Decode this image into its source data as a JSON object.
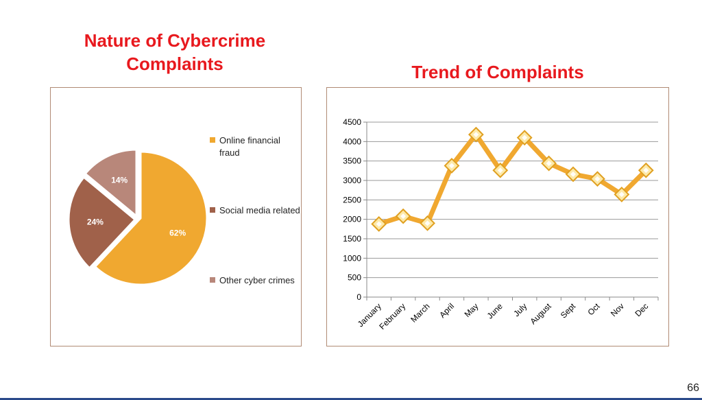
{
  "page_number": "66",
  "colors": {
    "title": "#e8191e",
    "online_financial_fraud": "#f0a830",
    "social_media": "#a0614a",
    "other": "#b8877a",
    "line": "#f0a830",
    "marker": "#fde9a8"
  },
  "chart_data": [
    {
      "type": "pie",
      "title": "Nature of Cybercrime Complaints",
      "legend_position": "right",
      "slices": [
        {
          "label": "Online financial fraud",
          "value": 62,
          "display": "62%"
        },
        {
          "label": "Social media related",
          "value": 24,
          "display": "24%"
        },
        {
          "label": "Other cyber crimes",
          "value": 14,
          "display": "14%"
        }
      ]
    },
    {
      "type": "line",
      "title": "Trend of Complaints",
      "categories": [
        "January",
        "February",
        "March",
        "April",
        "May",
        "June",
        "July",
        "August",
        "Sept",
        "Oct",
        "Nov",
        "Dec"
      ],
      "values": [
        1880,
        2080,
        1900,
        3380,
        4180,
        3260,
        4100,
        3440,
        3160,
        3040,
        2640,
        3260
      ],
      "ylim": [
        0,
        4500
      ],
      "y_ticks": [
        "0",
        "500",
        "1000",
        "1500",
        "2000",
        "2500",
        "3000",
        "3500",
        "4000",
        "4500"
      ],
      "grid": true,
      "legend": false
    }
  ]
}
